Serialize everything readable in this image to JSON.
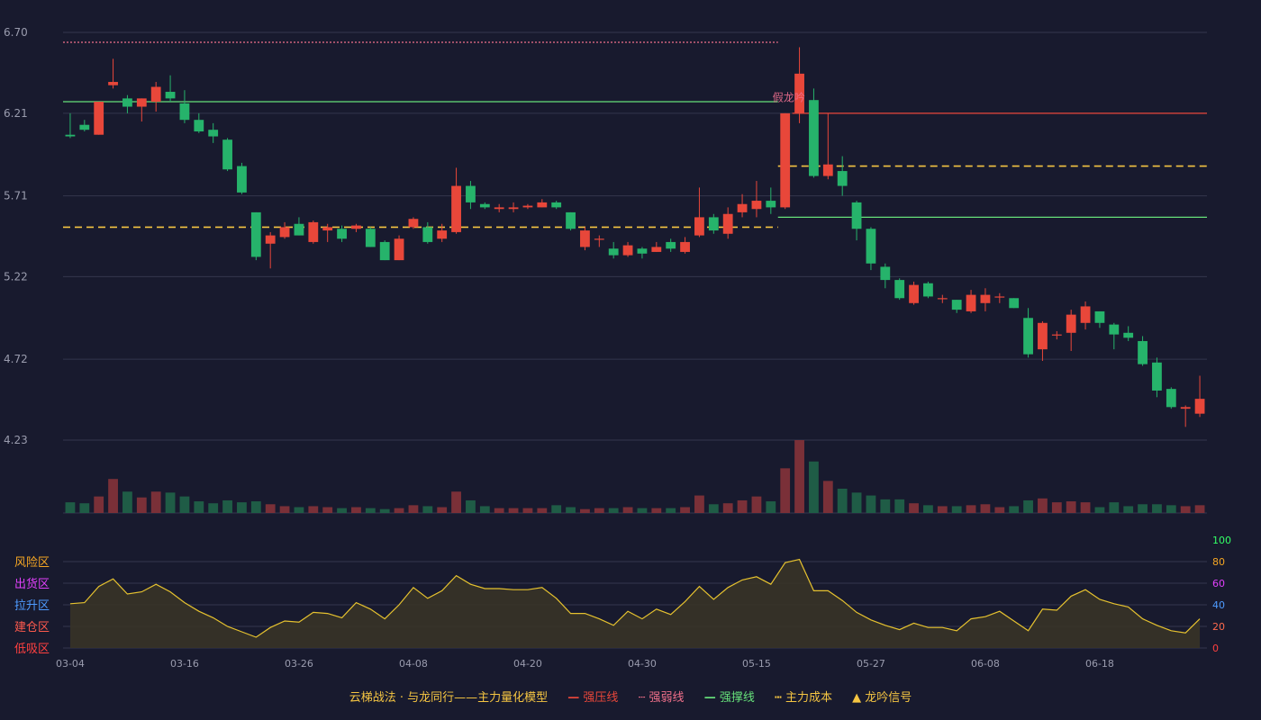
{
  "colors": {
    "background": "#181a2e",
    "grid": "#33364d",
    "axis_text": "#9a9cae",
    "up": "#e8473a",
    "down": "#26b36b",
    "pressure_line": "#e8473a",
    "weak_line": "#f0708a",
    "support_line": "#66e07a",
    "cost_line": "#f5c542",
    "osc_line": "#e6c22f"
  },
  "chart_data": {
    "type": "candlestick",
    "price_axis": {
      "ticks": [
        "6.70",
        "6.21",
        "5.71",
        "5.22",
        "4.72",
        "4.23"
      ],
      "range": [
        4.23,
        6.7
      ]
    },
    "date_labels": [
      "03-04",
      "03-16",
      "03-26",
      "04-08",
      "04-20",
      "04-30",
      "05-15",
      "05-27",
      "06-08",
      "06-18"
    ],
    "date_label_index": [
      0,
      8,
      16,
      24,
      32,
      40,
      48,
      56,
      64,
      72
    ],
    "candles": [
      [
        6.08,
        6.07,
        6.21,
        6.06
      ],
      [
        6.14,
        6.11,
        6.17,
        6.1
      ],
      [
        6.08,
        6.28,
        6.28,
        6.08
      ],
      [
        6.38,
        6.4,
        6.54,
        6.36
      ],
      [
        6.3,
        6.25,
        6.32,
        6.21
      ],
      [
        6.25,
        6.3,
        6.3,
        6.16
      ],
      [
        6.28,
        6.37,
        6.4,
        6.22
      ],
      [
        6.34,
        6.3,
        6.44,
        6.28
      ],
      [
        6.27,
        6.17,
        6.35,
        6.15
      ],
      [
        6.17,
        6.1,
        6.21,
        6.09
      ],
      [
        6.11,
        6.07,
        6.15,
        6.03
      ],
      [
        6.05,
        5.87,
        6.06,
        5.86
      ],
      [
        5.89,
        5.73,
        5.91,
        5.72
      ],
      [
        5.61,
        5.34,
        5.61,
        5.32
      ],
      [
        5.42,
        5.47,
        5.49,
        5.27
      ],
      [
        5.46,
        5.52,
        5.55,
        5.45
      ],
      [
        5.54,
        5.47,
        5.58,
        5.47
      ],
      [
        5.43,
        5.55,
        5.56,
        5.42
      ],
      [
        5.5,
        5.52,
        5.54,
        5.43
      ],
      [
        5.51,
        5.45,
        5.53,
        5.43
      ],
      [
        5.51,
        5.53,
        5.54,
        5.49
      ],
      [
        5.51,
        5.4,
        5.52,
        5.4
      ],
      [
        5.43,
        5.32,
        5.44,
        5.32
      ],
      [
        5.32,
        5.45,
        5.47,
        5.32
      ],
      [
        5.52,
        5.57,
        5.58,
        5.51
      ],
      [
        5.52,
        5.43,
        5.55,
        5.42
      ],
      [
        5.45,
        5.5,
        5.54,
        5.43
      ],
      [
        5.49,
        5.77,
        5.88,
        5.48
      ],
      [
        5.77,
        5.67,
        5.8,
        5.63
      ],
      [
        5.66,
        5.64,
        5.67,
        5.63
      ],
      [
        5.63,
        5.64,
        5.66,
        5.61
      ],
      [
        5.63,
        5.64,
        5.67,
        5.61
      ],
      [
        5.64,
        5.65,
        5.66,
        5.63
      ],
      [
        5.64,
        5.67,
        5.69,
        5.64
      ],
      [
        5.67,
        5.64,
        5.68,
        5.63
      ],
      [
        5.61,
        5.51,
        5.61,
        5.5
      ],
      [
        5.4,
        5.5,
        5.52,
        5.38
      ],
      [
        5.45,
        5.45,
        5.47,
        5.4
      ],
      [
        5.39,
        5.35,
        5.43,
        5.33
      ],
      [
        5.35,
        5.41,
        5.43,
        5.34
      ],
      [
        5.39,
        5.36,
        5.4,
        5.33
      ],
      [
        5.37,
        5.4,
        5.43,
        5.37
      ],
      [
        5.43,
        5.39,
        5.45,
        5.37
      ],
      [
        5.37,
        5.43,
        5.46,
        5.36
      ],
      [
        5.47,
        5.58,
        5.76,
        5.46
      ],
      [
        5.58,
        5.5,
        5.6,
        5.48
      ],
      [
        5.48,
        5.6,
        5.64,
        5.45
      ],
      [
        5.61,
        5.66,
        5.72,
        5.58
      ],
      [
        5.63,
        5.68,
        5.8,
        5.58
      ],
      [
        5.68,
        5.64,
        5.76,
        5.6
      ],
      [
        5.64,
        6.21,
        6.21,
        5.63
      ],
      [
        6.21,
        6.45,
        6.61,
        6.15
      ],
      [
        6.29,
        5.83,
        6.36,
        5.82
      ],
      [
        5.83,
        5.9,
        6.21,
        5.81
      ],
      [
        5.86,
        5.77,
        5.95,
        5.71
      ],
      [
        5.67,
        5.51,
        5.68,
        5.44
      ],
      [
        5.51,
        5.3,
        5.52,
        5.26
      ],
      [
        5.28,
        5.2,
        5.3,
        5.15
      ],
      [
        5.2,
        5.09,
        5.21,
        5.08
      ],
      [
        5.06,
        5.17,
        5.19,
        5.05
      ],
      [
        5.18,
        5.1,
        5.19,
        5.09
      ],
      [
        5.09,
        5.09,
        5.11,
        5.06
      ],
      [
        5.08,
        5.02,
        5.08,
        5.0
      ],
      [
        5.01,
        5.11,
        5.14,
        5.0
      ],
      [
        5.06,
        5.11,
        5.15,
        5.01
      ],
      [
        5.1,
        5.1,
        5.12,
        5.06
      ],
      [
        5.09,
        5.03,
        5.09,
        5.03
      ],
      [
        4.97,
        4.75,
        5.03,
        4.73
      ],
      [
        4.78,
        4.94,
        4.95,
        4.71
      ],
      [
        4.87,
        4.87,
        4.89,
        4.84
      ],
      [
        4.88,
        4.99,
        5.02,
        4.77
      ],
      [
        4.94,
        5.04,
        5.07,
        4.9
      ],
      [
        5.01,
        4.94,
        5.01,
        4.91
      ],
      [
        4.93,
        4.87,
        4.94,
        4.78
      ],
      [
        4.88,
        4.85,
        4.92,
        4.83
      ],
      [
        4.83,
        4.69,
        4.86,
        4.68
      ],
      [
        4.7,
        4.53,
        4.73,
        4.49
      ],
      [
        4.54,
        4.43,
        4.55,
        4.42
      ],
      [
        4.42,
        4.43,
        4.44,
        4.31
      ],
      [
        4.39,
        4.48,
        4.62,
        4.37
      ]
    ],
    "volumes": [
      11,
      10,
      17,
      35,
      22,
      16,
      22,
      21,
      17,
      12,
      10,
      13,
      11,
      12,
      9,
      7,
      6,
      7,
      6,
      5,
      6,
      5,
      4,
      5,
      8,
      7,
      6,
      22,
      13,
      7,
      5,
      5,
      5,
      5,
      8,
      6,
      4,
      5,
      5,
      6,
      5,
      5,
      5,
      6,
      18,
      9,
      10,
      13,
      17,
      12,
      46,
      75,
      53,
      33,
      25,
      21,
      18,
      14,
      14,
      10,
      8,
      7,
      7,
      8,
      9,
      6,
      7,
      13,
      15,
      11,
      12,
      11,
      6,
      11,
      7,
      9,
      9,
      8,
      7,
      8
    ],
    "volume_max": 75,
    "oscillator": {
      "left_labels": [
        "风险区",
        "出货区",
        "拉升区",
        "建仓区",
        "低吸区"
      ],
      "right_ticks": [
        "100",
        "80",
        "60",
        "40",
        "20",
        "0"
      ],
      "range": [
        0,
        100
      ],
      "values": [
        41,
        42,
        57,
        64,
        50,
        52,
        59,
        52,
        42,
        34,
        28,
        20,
        15,
        10,
        19,
        25,
        24,
        33,
        32,
        28,
        42,
        36,
        27,
        40,
        56,
        46,
        53,
        67,
        59,
        55,
        55,
        54,
        54,
        56,
        46,
        32,
        32,
        27,
        21,
        34,
        27,
        36,
        31,
        43,
        57,
        45,
        56,
        63,
        66,
        59,
        79,
        82,
        53,
        53,
        44,
        33,
        26,
        21,
        17,
        23,
        19,
        19,
        16,
        27,
        29,
        34,
        25,
        16,
        36,
        35,
        48,
        54,
        45,
        41,
        38,
        27,
        21,
        16,
        14,
        27
      ]
    },
    "lines": [
      {
        "name": "强压线",
        "style": "solid",
        "value": 6.21,
        "from": 51,
        "to": 79
      },
      {
        "name": "强弱线",
        "style": "dotted",
        "value": 6.64,
        "from": 0,
        "to": 49
      },
      {
        "name": "强撑线",
        "style": "solid",
        "value": 6.28,
        "from": 0,
        "to": 49
      },
      {
        "name": "强撑线",
        "style": "solid",
        "value": 5.58,
        "from": 50,
        "to": 79
      },
      {
        "name": "主力成本",
        "style": "dashed",
        "value": 5.52,
        "from": 0,
        "to": 49
      },
      {
        "name": "主力成本",
        "style": "dashed",
        "value": 5.89,
        "from": 50,
        "to": 79
      }
    ],
    "annotation": {
      "text": "假龙吟",
      "index": 50,
      "value": 6.26
    }
  },
  "legend": {
    "title": "云梯战法 · 与龙同行——主力量化模型",
    "items": [
      {
        "label": "强压线",
        "symbol": "—"
      },
      {
        "label": "强弱线",
        "symbol": "┄"
      },
      {
        "label": "强撑线",
        "symbol": "—"
      },
      {
        "label": "主力成本",
        "symbol": "┅"
      },
      {
        "label": "龙吟信号",
        "symbol": "▲"
      }
    ]
  }
}
